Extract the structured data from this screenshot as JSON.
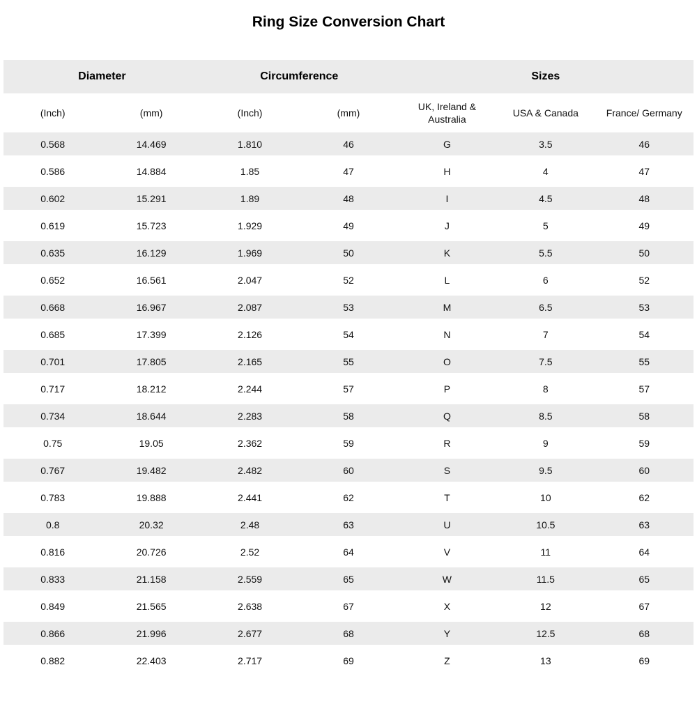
{
  "page": {
    "title": "Ring Size Conversion Chart"
  },
  "table": {
    "group_headers": [
      {
        "label": "Diameter"
      },
      {
        "label": "Circumference"
      },
      {
        "label": "Sizes"
      }
    ],
    "column_headers": [
      "(Inch)",
      "(mm)",
      "(Inch)",
      "(mm)",
      "UK, Ireland & Australia",
      "USA & Canada",
      "France/ Germany"
    ]
  },
  "chart_data": {
    "type": "table",
    "title": "Ring Size Conversion Chart",
    "column_groups": [
      {
        "label": "Diameter",
        "columns": [
          "(Inch)",
          "(mm)"
        ]
      },
      {
        "label": "Circumference",
        "columns": [
          "(Inch)",
          "(mm)"
        ]
      },
      {
        "label": "Sizes",
        "columns": [
          "UK, Ireland & Australia",
          "USA & Canada",
          "France/ Germany"
        ]
      }
    ],
    "columns": [
      "Diameter (Inch)",
      "Diameter (mm)",
      "Circumference (Inch)",
      "Circumference (mm)",
      "UK, Ireland & Australia",
      "USA & Canada",
      "France/ Germany"
    ],
    "rows": [
      [
        "0.568",
        "14.469",
        "1.810",
        "46",
        "G",
        "3.5",
        "46"
      ],
      [
        "0.586",
        "14.884",
        "1.85",
        "47",
        "H",
        "4",
        "47"
      ],
      [
        "0.602",
        "15.291",
        "1.89",
        "48",
        "I",
        "4.5",
        "48"
      ],
      [
        "0.619",
        "15.723",
        "1.929",
        "49",
        "J",
        "5",
        "49"
      ],
      [
        "0.635",
        "16.129",
        "1.969",
        "50",
        "K",
        "5.5",
        "50"
      ],
      [
        "0.652",
        "16.561",
        "2.047",
        "52",
        "L",
        "6",
        "52"
      ],
      [
        "0.668",
        "16.967",
        "2.087",
        "53",
        "M",
        "6.5",
        "53"
      ],
      [
        "0.685",
        "17.399",
        "2.126",
        "54",
        "N",
        "7",
        "54"
      ],
      [
        "0.701",
        "17.805",
        "2.165",
        "55",
        "O",
        "7.5",
        "55"
      ],
      [
        "0.717",
        "18.212",
        "2.244",
        "57",
        "P",
        "8",
        "57"
      ],
      [
        "0.734",
        "18.644",
        "2.283",
        "58",
        "Q",
        "8.5",
        "58"
      ],
      [
        "0.75",
        "19.05",
        "2.362",
        "59",
        "R",
        "9",
        "59"
      ],
      [
        "0.767",
        "19.482",
        "2.482",
        "60",
        "S",
        "9.5",
        "60"
      ],
      [
        "0.783",
        "19.888",
        "2.441",
        "62",
        "T",
        "10",
        "62"
      ],
      [
        "0.8",
        "20.32",
        "2.48",
        "63",
        "U",
        "10.5",
        "63"
      ],
      [
        "0.816",
        "20.726",
        "2.52",
        "64",
        "V",
        "11",
        "64"
      ],
      [
        "0.833",
        "21.158",
        "2.559",
        "65",
        "W",
        "11.5",
        "65"
      ],
      [
        "0.849",
        "21.565",
        "2.638",
        "67",
        "X",
        "12",
        "67"
      ],
      [
        "0.866",
        "21.996",
        "2.677",
        "68",
        "Y",
        "12.5",
        "68"
      ],
      [
        "0.882",
        "22.403",
        "2.717",
        "69",
        "Z",
        "13",
        "69"
      ]
    ]
  },
  "colors": {
    "stripe": "#ebebeb",
    "background": "#ffffff",
    "text": "#111111"
  }
}
